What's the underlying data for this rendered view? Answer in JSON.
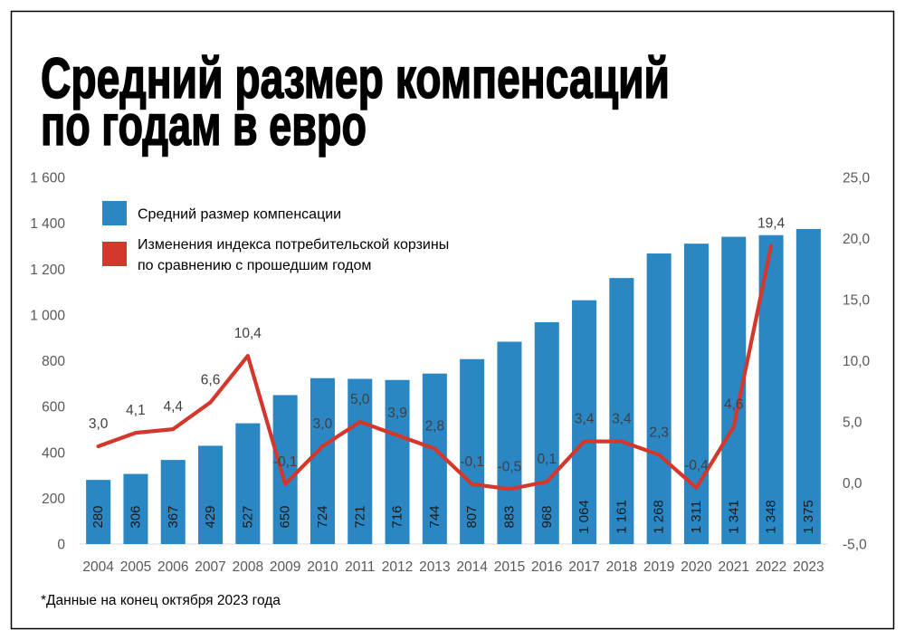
{
  "title": {
    "line1": "Средний размер компенсаций",
    "line2": "по годам в евро"
  },
  "footnote": "*Данные на конец октября 2023 года",
  "colors": {
    "background": "#ffffff",
    "frame": "#000000",
    "text": "#000000",
    "bar": "#2b87c4",
    "line": "#d4372c",
    "axis_text": "#595959",
    "axis_line": "#d9d9d9",
    "data_label": "#404040",
    "bar_label": "#1a1a1a"
  },
  "chart_data": {
    "type": "bar",
    "categories": [
      "2004",
      "2005",
      "2006",
      "2007",
      "2008",
      "2009",
      "2010",
      "2011",
      "2012",
      "2013",
      "2014",
      "2015",
      "2016",
      "2017",
      "2018",
      "2019",
      "2020",
      "2021",
      "2022",
      "2023"
    ],
    "series": [
      {
        "name": [
          "Средний размер компенсации"
        ],
        "type": "bar",
        "axis": "left",
        "values": [
          280,
          306,
          367,
          429,
          527,
          650,
          724,
          721,
          716,
          744,
          807,
          883,
          968,
          1064,
          1161,
          1268,
          1311,
          1341,
          1348,
          1375
        ],
        "labels": [
          "280",
          "306",
          "367",
          "429",
          "527",
          "650",
          "724",
          "721",
          "716",
          "744",
          "807",
          "883",
          "968",
          "1 064",
          "1 161",
          "1 268",
          "1 311",
          "1 341",
          "1 348",
          "1 375"
        ]
      },
      {
        "name": [
          "Изменения индекса потребительской корзины",
          "по сравнению с прошедшим годом"
        ],
        "type": "line",
        "axis": "right",
        "values": [
          3.0,
          4.1,
          4.4,
          6.6,
          10.4,
          -0.1,
          3.0,
          5.0,
          3.9,
          2.8,
          -0.1,
          -0.5,
          0.1,
          3.4,
          3.4,
          2.3,
          -0.4,
          4.6,
          19.4,
          null
        ],
        "labels": [
          "3,0",
          "4,1",
          "4,4",
          "6,6",
          "10,4",
          "-0,1",
          "3,0",
          "5,0",
          "3,9",
          "2,8",
          "-0,1",
          "-0,5",
          "0,1",
          "3,4",
          "3,4",
          "2,3",
          "-0,4",
          "4,6",
          "19,4",
          null
        ]
      }
    ],
    "y_left": {
      "min": 0,
      "max": 1600,
      "ticks": [
        0,
        200,
        400,
        600,
        800,
        1000,
        1200,
        1400,
        1600
      ],
      "tick_labels": [
        "0",
        "200",
        "400",
        "600",
        "800",
        "1 000",
        "1 200",
        "1 400",
        "1 600"
      ]
    },
    "y_right": {
      "min": -5,
      "max": 25,
      "ticks": [
        -5,
        0,
        5,
        10,
        15,
        20,
        25
      ],
      "tick_labels": [
        "-5,0",
        "0,0",
        "5,0",
        "10,0",
        "15,0",
        "20,0",
        "25,0"
      ]
    },
    "legend": "top-left",
    "grid": false
  }
}
